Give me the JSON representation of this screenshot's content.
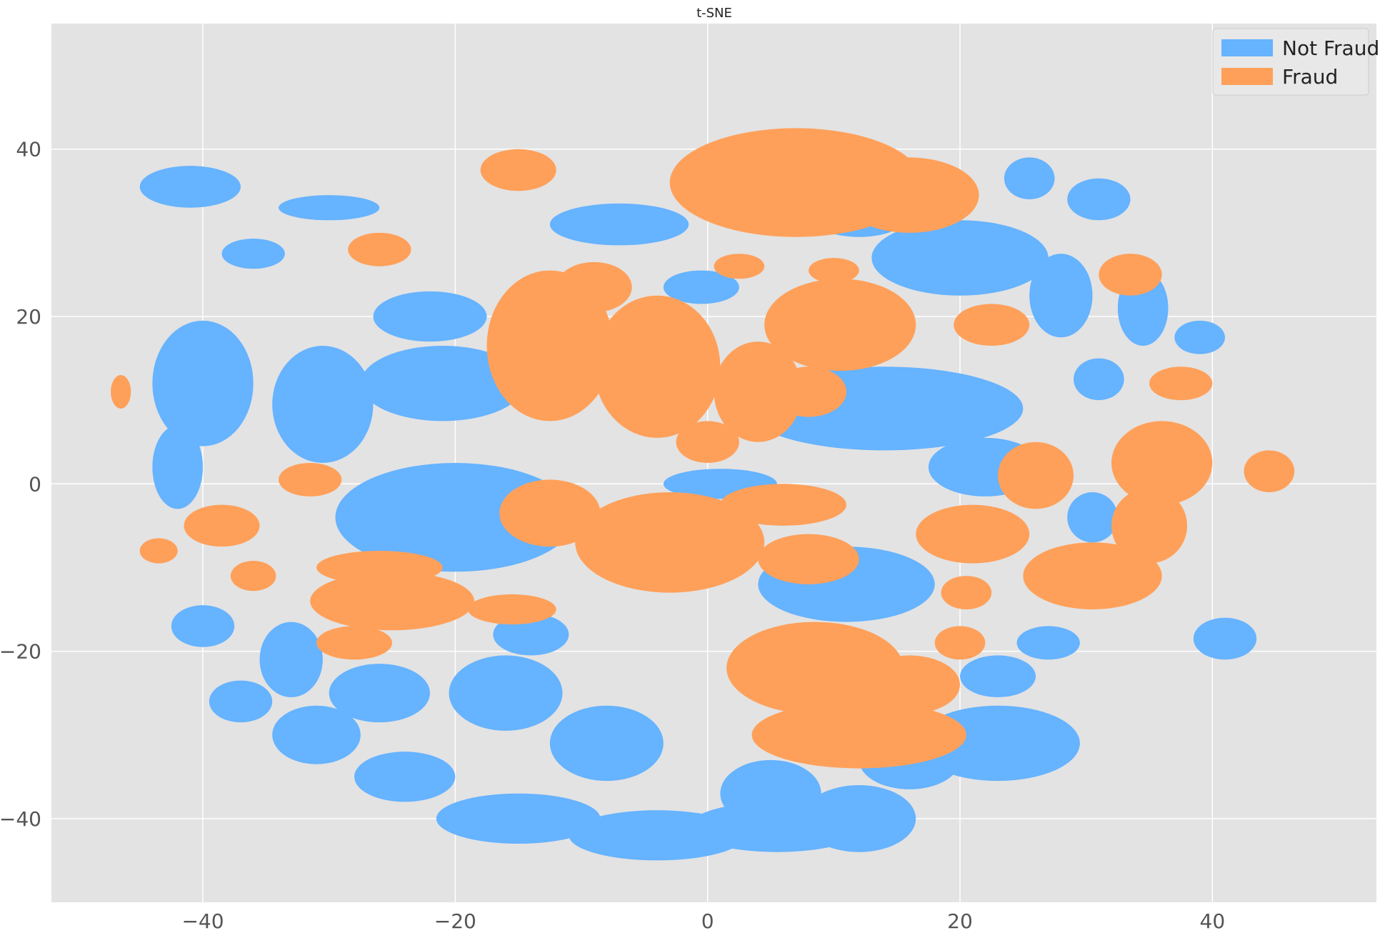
{
  "chart_data": {
    "type": "scatter",
    "title": "t-SNE",
    "xlabel": "",
    "ylabel": "",
    "xlim": [
      -52,
      53
    ],
    "ylim": [
      -50,
      55
    ],
    "x_ticks": [
      -40,
      -20,
      0,
      20,
      40
    ],
    "y_ticks": [
      -40,
      -20,
      0,
      20,
      40
    ],
    "x_tick_labels": [
      "−40",
      "−20",
      "0",
      "20",
      "40"
    ],
    "y_tick_labels": [
      "−40",
      "−20",
      "0",
      "20",
      "40"
    ],
    "grid": true,
    "legend_position": "top-right",
    "colors": {
      "Not Fraud": "#66b3ff",
      "Fraud": "#ffa05a",
      "background": "#e3e3e3",
      "grid": "#ffffff"
    },
    "series": [
      {
        "name": "Not Fraud",
        "color": "#66b3ff",
        "clusters": [
          {
            "cx": -20.0,
            "cy": -4.0,
            "rx": 9.5,
            "ry": 6.5
          },
          {
            "cx": -30.5,
            "cy": 9.5,
            "rx": 4.0,
            "ry": 7.0
          },
          {
            "cx": -40.0,
            "cy": 12.0,
            "rx": 4.0,
            "ry": 7.5
          },
          {
            "cx": -42.0,
            "cy": 2.0,
            "rx": 2.0,
            "ry": 5.0
          },
          {
            "cx": -21.0,
            "cy": 12.0,
            "rx": 6.5,
            "ry": 4.5
          },
          {
            "cx": -22.0,
            "cy": 20.0,
            "rx": 4.5,
            "ry": 3.0
          },
          {
            "cx": -14.0,
            "cy": -18.0,
            "rx": 3.0,
            "ry": 2.5
          },
          {
            "cx": 14.0,
            "cy": 9.0,
            "rx": 11.0,
            "ry": 5.0
          },
          {
            "cx": 22.0,
            "cy": 2.0,
            "rx": 4.5,
            "ry": 3.5
          },
          {
            "cx": 11.0,
            "cy": -12.0,
            "rx": 7.0,
            "ry": 4.5
          },
          {
            "cx": 20.0,
            "cy": 27.0,
            "rx": 7.0,
            "ry": 4.5
          },
          {
            "cx": 12.0,
            "cy": 31.5,
            "rx": 3.5,
            "ry": 2.0
          },
          {
            "cx": -7.0,
            "cy": 31.0,
            "rx": 5.5,
            "ry": 2.5
          },
          {
            "cx": -0.5,
            "cy": 23.5,
            "rx": 3.0,
            "ry": 2.0
          },
          {
            "cx": 5.0,
            "cy": -37.0,
            "rx": 4.0,
            "ry": 4.0
          },
          {
            "cx": -8.0,
            "cy": -31.0,
            "rx": 4.5,
            "ry": 4.5
          },
          {
            "cx": 5.5,
            "cy": -41.0,
            "rx": 7.0,
            "ry": 3.0
          },
          {
            "cx": -4.0,
            "cy": -42.0,
            "rx": 7.0,
            "ry": 3.0
          },
          {
            "cx": -15.0,
            "cy": -40.0,
            "rx": 6.5,
            "ry": 3.0
          },
          {
            "cx": 12.0,
            "cy": -40.0,
            "rx": 4.5,
            "ry": 4.0
          },
          {
            "cx": 23.0,
            "cy": -31.0,
            "rx": 6.5,
            "ry": 4.5
          },
          {
            "cx": 16.0,
            "cy": -33.0,
            "rx": 4.0,
            "ry": 3.5
          },
          {
            "cx": -16.0,
            "cy": -25.0,
            "rx": 4.5,
            "ry": 4.5
          },
          {
            "cx": -26.0,
            "cy": -25.0,
            "rx": 4.0,
            "ry": 3.5
          },
          {
            "cx": -31.0,
            "cy": -30.0,
            "rx": 3.5,
            "ry": 3.5
          },
          {
            "cx": -33.0,
            "cy": -21.0,
            "rx": 2.5,
            "ry": 4.5
          },
          {
            "cx": -24.0,
            "cy": -35.0,
            "rx": 4.0,
            "ry": 3.0
          },
          {
            "cx": -40.0,
            "cy": -17.0,
            "rx": 2.5,
            "ry": 2.5
          },
          {
            "cx": -37.0,
            "cy": -26.0,
            "rx": 2.5,
            "ry": 2.5
          },
          {
            "cx": 27.0,
            "cy": -19.0,
            "rx": 2.5,
            "ry": 2.0
          },
          {
            "cx": 23.0,
            "cy": -23.0,
            "rx": 3.0,
            "ry": 2.5
          },
          {
            "cx": 41.0,
            "cy": -18.5,
            "rx": 2.5,
            "ry": 2.5
          },
          {
            "cx": 30.5,
            "cy": -4.0,
            "rx": 2.0,
            "ry": 3.0
          },
          {
            "cx": 1.0,
            "cy": 0.0,
            "rx": 4.5,
            "ry": 1.8
          },
          {
            "cx": -41.0,
            "cy": 35.5,
            "rx": 4.0,
            "ry": 2.5
          },
          {
            "cx": -30.0,
            "cy": 33.0,
            "rx": 4.0,
            "ry": 1.5
          },
          {
            "cx": -36.0,
            "cy": 27.5,
            "rx": 2.5,
            "ry": 1.8
          },
          {
            "cx": 28.0,
            "cy": 22.5,
            "rx": 2.5,
            "ry": 5.0
          },
          {
            "cx": 34.5,
            "cy": 21.0,
            "rx": 2.0,
            "ry": 4.5
          },
          {
            "cx": 39.0,
            "cy": 17.5,
            "rx": 2.0,
            "ry": 2.0
          },
          {
            "cx": 31.0,
            "cy": 12.5,
            "rx": 2.0,
            "ry": 2.5
          },
          {
            "cx": 31.0,
            "cy": 34.0,
            "rx": 2.5,
            "ry": 2.5
          },
          {
            "cx": 25.5,
            "cy": 36.5,
            "rx": 2.0,
            "ry": 2.5
          }
        ]
      },
      {
        "name": "Fraud",
        "color": "#ffa05a",
        "clusters": [
          {
            "cx": 7.0,
            "cy": 36.0,
            "rx": 10.0,
            "ry": 6.5
          },
          {
            "cx": 16.0,
            "cy": 34.5,
            "rx": 5.5,
            "ry": 4.5
          },
          {
            "cx": -12.5,
            "cy": 16.5,
            "rx": 5.0,
            "ry": 9.0
          },
          {
            "cx": -4.0,
            "cy": 14.0,
            "rx": 5.0,
            "ry": 8.5
          },
          {
            "cx": 4.0,
            "cy": 11.0,
            "rx": 3.5,
            "ry": 6.0
          },
          {
            "cx": 10.5,
            "cy": 19.0,
            "rx": 6.0,
            "ry": 5.5
          },
          {
            "cx": 8.0,
            "cy": 11.0,
            "rx": 3.0,
            "ry": 3.0
          },
          {
            "cx": -3.0,
            "cy": -7.0,
            "rx": 7.5,
            "ry": 6.0
          },
          {
            "cx": -12.5,
            "cy": -3.5,
            "rx": 4.0,
            "ry": 4.0
          },
          {
            "cx": 6.0,
            "cy": -2.5,
            "rx": 5.0,
            "ry": 2.5
          },
          {
            "cx": 8.0,
            "cy": -9.0,
            "rx": 4.0,
            "ry": 3.0
          },
          {
            "cx": 8.5,
            "cy": -22.0,
            "rx": 7.0,
            "ry": 5.5
          },
          {
            "cx": 12.0,
            "cy": -30.0,
            "rx": 8.5,
            "ry": 4.0
          },
          {
            "cx": 16.0,
            "cy": -24.0,
            "rx": 4.0,
            "ry": 3.5
          },
          {
            "cx": -25.0,
            "cy": -14.0,
            "rx": 6.5,
            "ry": 3.5
          },
          {
            "cx": -26.0,
            "cy": -10.0,
            "rx": 5.0,
            "ry": 2.0
          },
          {
            "cx": -28.0,
            "cy": -19.0,
            "rx": 3.0,
            "ry": 2.0
          },
          {
            "cx": -15.5,
            "cy": -15.0,
            "rx": 3.5,
            "ry": 1.8
          },
          {
            "cx": 21.0,
            "cy": -6.0,
            "rx": 4.5,
            "ry": 3.5
          },
          {
            "cx": 26.0,
            "cy": 1.0,
            "rx": 3.0,
            "ry": 4.0
          },
          {
            "cx": 30.5,
            "cy": -11.0,
            "rx": 5.5,
            "ry": 4.0
          },
          {
            "cx": 35.0,
            "cy": -5.0,
            "rx": 3.0,
            "ry": 4.5
          },
          {
            "cx": 36.0,
            "cy": 2.5,
            "rx": 4.0,
            "ry": 5.0
          },
          {
            "cx": 22.5,
            "cy": 19.0,
            "rx": 3.0,
            "ry": 2.5
          },
          {
            "cx": 33.5,
            "cy": 25.0,
            "rx": 2.5,
            "ry": 2.5
          },
          {
            "cx": 37.5,
            "cy": 12.0,
            "rx": 2.5,
            "ry": 2.0
          },
          {
            "cx": 44.5,
            "cy": 1.5,
            "rx": 2.0,
            "ry": 2.5
          },
          {
            "cx": -31.5,
            "cy": 0.5,
            "rx": 2.5,
            "ry": 2.0
          },
          {
            "cx": -38.5,
            "cy": -5.0,
            "rx": 3.0,
            "ry": 2.5
          },
          {
            "cx": -43.5,
            "cy": -8.0,
            "rx": 1.5,
            "ry": 1.5
          },
          {
            "cx": -26.0,
            "cy": 28.0,
            "rx": 2.5,
            "ry": 2.0
          },
          {
            "cx": -15.0,
            "cy": 37.5,
            "rx": 3.0,
            "ry": 2.5
          },
          {
            "cx": -9.0,
            "cy": 23.5,
            "rx": 3.0,
            "ry": 3.0
          },
          {
            "cx": 0.0,
            "cy": 5.0,
            "rx": 2.5,
            "ry": 2.5
          },
          {
            "cx": 20.5,
            "cy": -13.0,
            "rx": 2.0,
            "ry": 2.0
          },
          {
            "cx": 20.0,
            "cy": -19.0,
            "rx": 2.0,
            "ry": 2.0
          },
          {
            "cx": 10.0,
            "cy": 25.5,
            "rx": 2.0,
            "ry": 1.5
          },
          {
            "cx": 2.5,
            "cy": 26.0,
            "rx": 2.0,
            "ry": 1.5
          },
          {
            "cx": -36.0,
            "cy": -11.0,
            "rx": 1.8,
            "ry": 1.8
          },
          {
            "cx": -46.5,
            "cy": 11.0,
            "rx": 0.8,
            "ry": 2.0
          }
        ]
      }
    ]
  }
}
